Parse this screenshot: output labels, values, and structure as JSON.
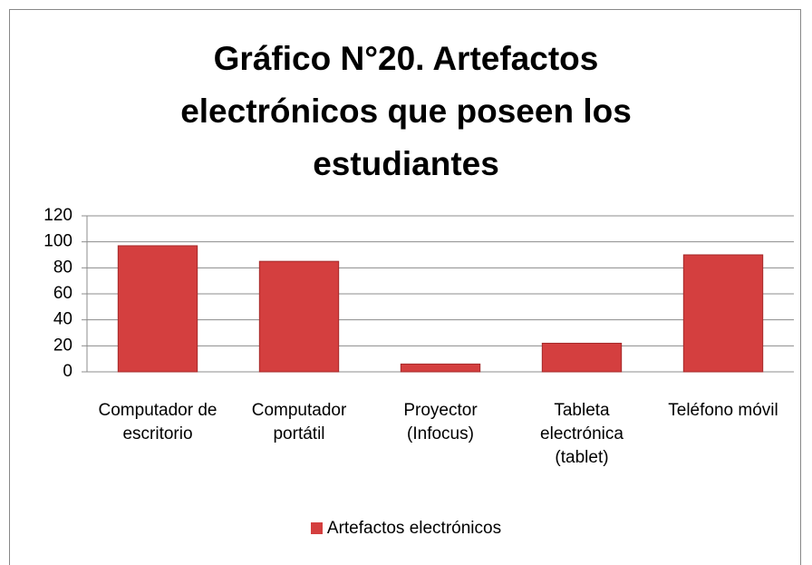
{
  "chart_data": {
    "type": "bar",
    "title": "Gráfico N°20. Artefactos electrónicos que poseen los estudiantes",
    "categories": [
      "Computador de escritorio",
      "Computador portátil",
      "Proyector (Infocus)",
      "Tableta electrónica (tablet)",
      "Teléfono móvil"
    ],
    "series": [
      {
        "name": "Artefactos electrónicos",
        "color": "#d43f3f",
        "values": [
          97,
          85,
          6,
          22,
          90
        ]
      }
    ],
    "ylim": [
      0,
      120
    ],
    "yticks": [
      0,
      20,
      40,
      60,
      80,
      100,
      120
    ],
    "grid": true,
    "legend": "bottom"
  }
}
